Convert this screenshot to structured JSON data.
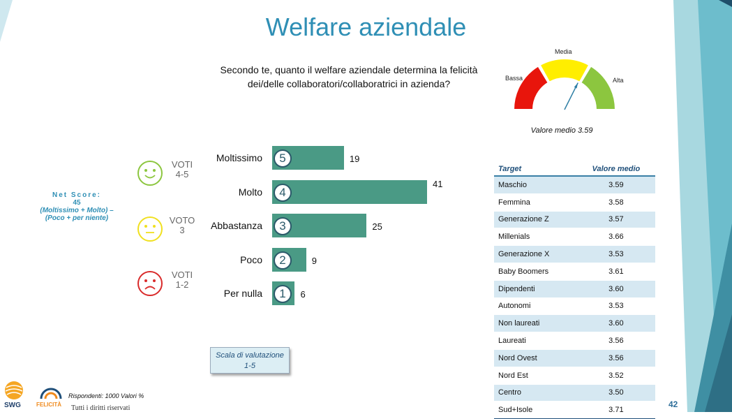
{
  "title": "Welfare aziendale",
  "question": "Secondo te, quanto il welfare aziendale determina la felicità dei/delle collaboratori/collaboratrici in azienda?",
  "gauge": {
    "labels": {
      "low": "Bassa",
      "mid": "Media",
      "high": "Alta"
    },
    "average_label": "Valore medio 3.59",
    "value": 3.59,
    "range": [
      1,
      5
    ],
    "colors": {
      "low": "#e8150c",
      "mid": "#ffee00",
      "high": "#8cc63f"
    }
  },
  "smileys": [
    {
      "label": "VOTI 4-5",
      "line1": "VOTI",
      "line2": "4-5",
      "color": "#8cc63f",
      "mood": "happy"
    },
    {
      "label": "VOTO 3",
      "line1": "VOTO",
      "line2": "3",
      "color": "#f0e020",
      "mood": "neutral"
    },
    {
      "label": "VOTI 1-2",
      "line1": "VOTI",
      "line2": "1-2",
      "color": "#d92b2b",
      "mood": "sad"
    }
  ],
  "net_score": {
    "title": "Net Score:",
    "value": "45",
    "formula_1": "(Moltissimo + Molto) –",
    "formula_2": "(Poco + per niente)"
  },
  "scale_box": {
    "line1": "Scala di valutazione",
    "line2": "1-5"
  },
  "chart_data": {
    "type": "bar",
    "orientation": "horizontal",
    "categories": [
      "Moltissimo",
      "Molto",
      "Abbastanza",
      "Poco",
      "Per nulla"
    ],
    "scores": [
      "5",
      "4",
      "3",
      "2",
      "1"
    ],
    "values": [
      19,
      41,
      25,
      9,
      6
    ],
    "color": "#4a9a85",
    "xlim": [
      0,
      41
    ],
    "grid": false
  },
  "table": {
    "headers": [
      "Target",
      "Valore medio"
    ],
    "rows": [
      [
        "Maschio",
        "3.59"
      ],
      [
        "Femmina",
        "3.58"
      ],
      [
        "Generazione Z",
        "3.57"
      ],
      [
        "Millenials",
        "3.66"
      ],
      [
        "Generazione X",
        "3.53"
      ],
      [
        "Baby Boomers",
        "3.61"
      ],
      [
        "Dipendenti",
        "3.60"
      ],
      [
        "Autonomi",
        "3.53"
      ],
      [
        "Non laureati",
        "3.60"
      ],
      [
        "Laureati",
        "3.56"
      ],
      [
        "Nord Ovest",
        "3.56"
      ],
      [
        "Nord Est",
        "3.52"
      ],
      [
        "Centro",
        "3.50"
      ],
      [
        "Sud+Isole",
        "3.71"
      ]
    ]
  },
  "footer": {
    "respondents": "Rispondenti: 1000 Valori %",
    "rights": "Tutti i diritti riservati",
    "page_number": "42",
    "logo_swg": "SWG",
    "logo_felicita": "FELICITÀ"
  },
  "colors": {
    "title": "#2f8fb5",
    "accent_teal": "#7cc6d2",
    "table_stripe": "#d6e8f2"
  }
}
